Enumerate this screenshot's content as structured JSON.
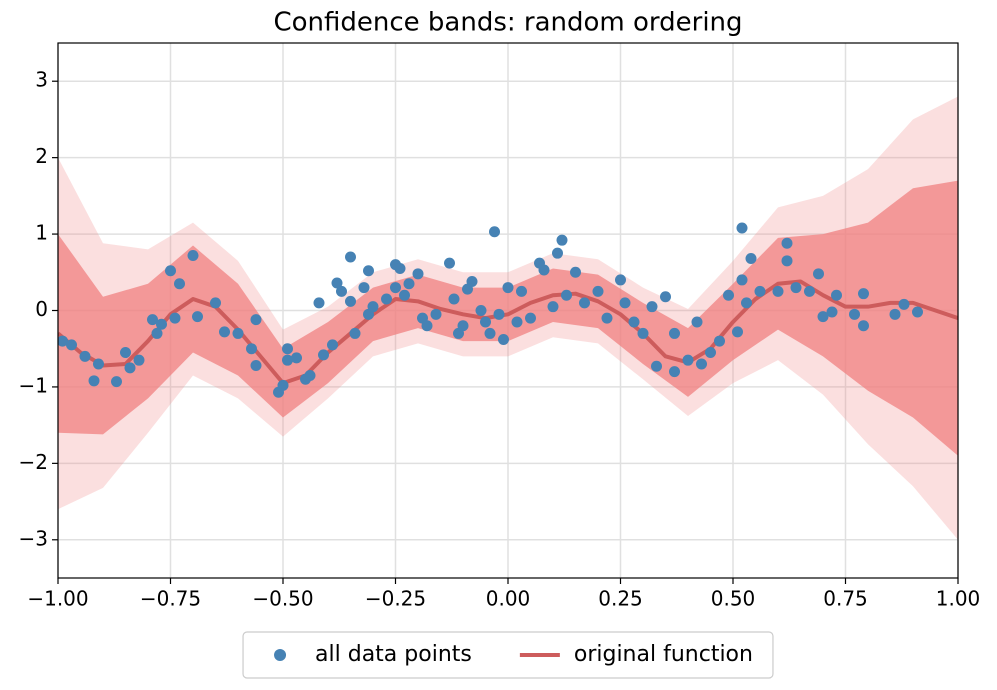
{
  "chart_data": {
    "type": "line",
    "title": "Confidence bands: random ordering",
    "xlim": [
      -1,
      1
    ],
    "ylim": [
      -3.5,
      3.5
    ],
    "xticks": [
      {
        "value": -1,
        "label": "−1.00"
      },
      {
        "value": -0.75,
        "label": "−0.75"
      },
      {
        "value": -0.5,
        "label": "−0.50"
      },
      {
        "value": -0.25,
        "label": "−0.25"
      },
      {
        "value": 0,
        "label": "0.00"
      },
      {
        "value": 0.25,
        "label": "0.25"
      },
      {
        "value": 0.5,
        "label": "0.50"
      },
      {
        "value": 0.75,
        "label": "0.75"
      },
      {
        "value": 1,
        "label": "1.00"
      }
    ],
    "yticks": [
      {
        "value": -3,
        "label": "−3"
      },
      {
        "value": -2,
        "label": "−2"
      },
      {
        "value": -1,
        "label": "−1"
      },
      0,
      1,
      2,
      3
    ],
    "grid": true,
    "legend": "bottom",
    "bands": [
      {
        "color": "#f08080",
        "opacity": 0.25,
        "x": [
          -1,
          -0.9,
          -0.8,
          -0.7,
          -0.6,
          -0.5,
          -0.4,
          -0.3,
          -0.2,
          -0.1,
          0,
          0.1,
          0.2,
          0.3,
          0.4,
          0.5,
          0.6,
          0.7,
          0.8,
          0.9,
          1
        ],
        "lower": [
          -2.6,
          -2.32,
          -1.6,
          -0.85,
          -1.15,
          -1.65,
          -1.15,
          -0.6,
          -0.43,
          -0.6,
          -0.6,
          -0.35,
          -0.43,
          -0.9,
          -1.38,
          -0.95,
          -0.65,
          -1.1,
          -1.75,
          -2.3,
          -3.0
        ],
        "upper": [
          2.0,
          0.88,
          0.8,
          1.15,
          0.65,
          -0.25,
          0.05,
          0.5,
          0.67,
          0.5,
          0.5,
          0.75,
          0.67,
          0.3,
          0.02,
          0.65,
          1.35,
          1.5,
          1.85,
          2.5,
          2.8
        ]
      },
      {
        "color": "#f08080",
        "opacity": 0.75,
        "x": [
          -1,
          -0.9,
          -0.8,
          -0.7,
          -0.6,
          -0.5,
          -0.4,
          -0.3,
          -0.2,
          -0.1,
          0,
          0.1,
          0.2,
          0.3,
          0.4,
          0.5,
          0.6,
          0.7,
          0.8,
          0.9,
          1
        ],
        "lower": [
          -1.6,
          -1.62,
          -1.15,
          -0.55,
          -0.85,
          -1.4,
          -0.95,
          -0.4,
          -0.23,
          -0.4,
          -0.4,
          -0.15,
          -0.23,
          -0.7,
          -1.13,
          -0.65,
          -0.25,
          -0.6,
          -1.05,
          -1.4,
          -1.9
        ],
        "upper": [
          1.0,
          0.18,
          0.35,
          0.85,
          0.35,
          -0.5,
          -0.15,
          0.3,
          0.47,
          0.3,
          0.3,
          0.55,
          0.47,
          0.1,
          -0.23,
          0.35,
          0.95,
          1.0,
          1.15,
          1.6,
          1.7
        ]
      }
    ],
    "series": [
      {
        "name": "all data points",
        "type": "scatter",
        "color": "#4682b4",
        "x": [
          -0.99,
          -0.97,
          -0.94,
          -0.92,
          -0.91,
          -0.87,
          -0.85,
          -0.84,
          -0.82,
          -0.79,
          -0.78,
          -0.77,
          -0.75,
          -0.74,
          -0.73,
          -0.7,
          -0.69,
          -0.65,
          -0.63,
          -0.6,
          -0.57,
          -0.56,
          -0.56,
          -0.51,
          -0.5,
          -0.49,
          -0.49,
          -0.47,
          -0.45,
          -0.44,
          -0.42,
          -0.41,
          -0.39,
          -0.38,
          -0.37,
          -0.35,
          -0.35,
          -0.34,
          -0.32,
          -0.31,
          -0.31,
          -0.3,
          -0.27,
          -0.25,
          -0.25,
          -0.24,
          -0.23,
          -0.22,
          -0.2,
          -0.19,
          -0.18,
          -0.16,
          -0.13,
          -0.12,
          -0.11,
          -0.1,
          -0.09,
          -0.08,
          -0.06,
          -0.05,
          -0.04,
          -0.03,
          -0.02,
          -0.01,
          0.0,
          0.02,
          0.03,
          0.05,
          0.07,
          0.08,
          0.1,
          0.11,
          0.12,
          0.13,
          0.15,
          0.17,
          0.2,
          0.22,
          0.25,
          0.26,
          0.28,
          0.3,
          0.32,
          0.33,
          0.35,
          0.37,
          0.37,
          0.4,
          0.42,
          0.43,
          0.45,
          0.47,
          0.49,
          0.51,
          0.52,
          0.52,
          0.53,
          0.54,
          0.56,
          0.6,
          0.62,
          0.62,
          0.64,
          0.67,
          0.69,
          0.7,
          0.72,
          0.73,
          0.77,
          0.79,
          0.79,
          0.86,
          0.88,
          0.91
        ],
        "values": [
          -0.4,
          -0.45,
          -0.6,
          -0.92,
          -0.7,
          -0.93,
          -0.55,
          -0.75,
          -0.65,
          -0.12,
          -0.3,
          -0.18,
          0.52,
          -0.1,
          0.35,
          0.72,
          -0.08,
          0.1,
          -0.28,
          -0.3,
          -0.5,
          -0.12,
          -0.72,
          -1.07,
          -0.98,
          -0.65,
          -0.5,
          -0.62,
          -0.9,
          -0.85,
          0.1,
          -0.58,
          -0.45,
          0.36,
          0.25,
          0.7,
          0.12,
          -0.3,
          0.3,
          -0.05,
          0.52,
          0.05,
          0.15,
          0.3,
          0.6,
          0.55,
          0.2,
          0.35,
          0.48,
          -0.1,
          -0.2,
          -0.05,
          0.62,
          0.15,
          -0.3,
          -0.2,
          0.28,
          0.38,
          0.0,
          -0.15,
          -0.3,
          1.03,
          -0.05,
          -0.38,
          0.3,
          -0.15,
          0.25,
          -0.1,
          0.62,
          0.53,
          0.05,
          0.75,
          0.92,
          0.2,
          0.5,
          0.1,
          0.25,
          -0.1,
          0.4,
          0.1,
          -0.15,
          -0.3,
          0.05,
          -0.73,
          0.18,
          -0.3,
          -0.8,
          -0.65,
          -0.15,
          -0.7,
          -0.55,
          -0.4,
          0.2,
          -0.28,
          1.08,
          0.4,
          0.1,
          0.68,
          0.25,
          0.25,
          0.88,
          0.65,
          0.3,
          0.25,
          0.48,
          -0.08,
          -0.02,
          0.2,
          -0.05,
          0.22,
          -0.2,
          -0.05,
          0.08,
          -0.02
        ]
      },
      {
        "name": "original function",
        "type": "line",
        "color": "#cd5c5c",
        "x": [
          -1,
          -0.95,
          -0.9,
          -0.85,
          -0.8,
          -0.75,
          -0.7,
          -0.65,
          -0.6,
          -0.55,
          -0.5,
          -0.45,
          -0.4,
          -0.35,
          -0.3,
          -0.25,
          -0.2,
          -0.15,
          -0.1,
          -0.05,
          0,
          0.05,
          0.1,
          0.15,
          0.2,
          0.25,
          0.3,
          0.35,
          0.4,
          0.45,
          0.5,
          0.55,
          0.6,
          0.65,
          0.7,
          0.75,
          0.8,
          0.85,
          0.9,
          0.95,
          1
        ],
        "values": [
          -0.3,
          -0.55,
          -0.72,
          -0.7,
          -0.4,
          -0.05,
          0.15,
          0.05,
          -0.25,
          -0.6,
          -0.95,
          -0.85,
          -0.55,
          -0.3,
          -0.05,
          0.15,
          0.12,
          0.02,
          -0.05,
          -0.1,
          -0.05,
          0.1,
          0.2,
          0.22,
          0.12,
          -0.05,
          -0.3,
          -0.6,
          -0.68,
          -0.5,
          -0.15,
          0.15,
          0.35,
          0.38,
          0.2,
          0.05,
          0.05,
          0.1,
          0.1,
          0.0,
          -0.1
        ]
      }
    ]
  }
}
